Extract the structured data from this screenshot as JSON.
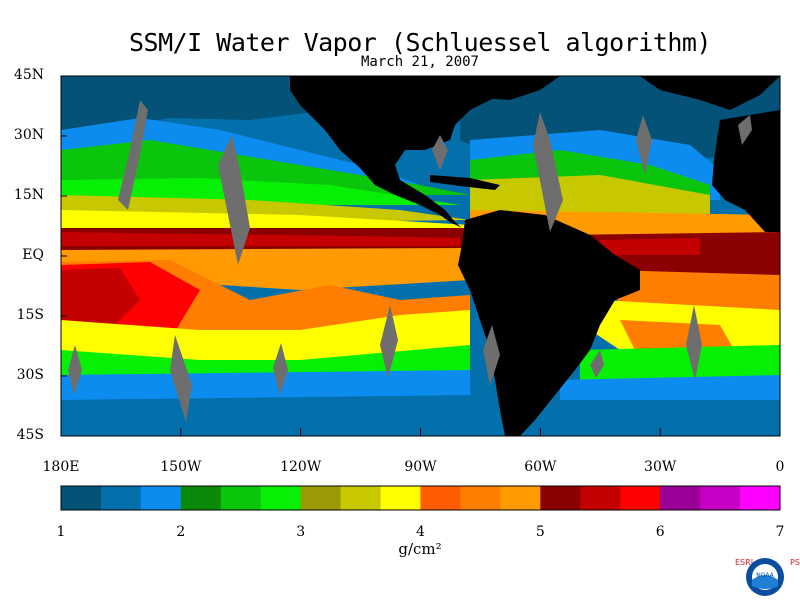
{
  "title": "SSM/I Water Vapor (Schluessel algorithm)",
  "subtitle": "March 21, 2007",
  "lat_labels": [
    "45N",
    "30N",
    "15N",
    "EQ",
    "15S",
    "30S",
    "45S"
  ],
  "lon_labels": [
    "180E",
    "150W",
    "120W",
    "90W",
    "60W",
    "30W",
    "0"
  ],
  "colorbar": {
    "ticks": [
      "1",
      "2",
      "3",
      "4",
      "5",
      "6",
      "7"
    ],
    "units": "g/cm²",
    "colors": [
      "#045277",
      "#0470ab",
      "#0d8cf0",
      "#0b8a0a",
      "#0bc40c",
      "#06f005",
      "#9a9a07",
      "#c8c800",
      "#ffff00",
      "#ff5b00",
      "#ff7d00",
      "#ff9b00",
      "#8b0000",
      "#c40000",
      "#ff0000",
      "#9a0098",
      "#c700c7",
      "#ff00ff"
    ]
  },
  "logo": {
    "text": "NOAA",
    "left_letters": "ESRL",
    "right_letters": "PSD"
  },
  "map_colors": {
    "land": "#000000",
    "missing": "#6e6e6e"
  }
}
